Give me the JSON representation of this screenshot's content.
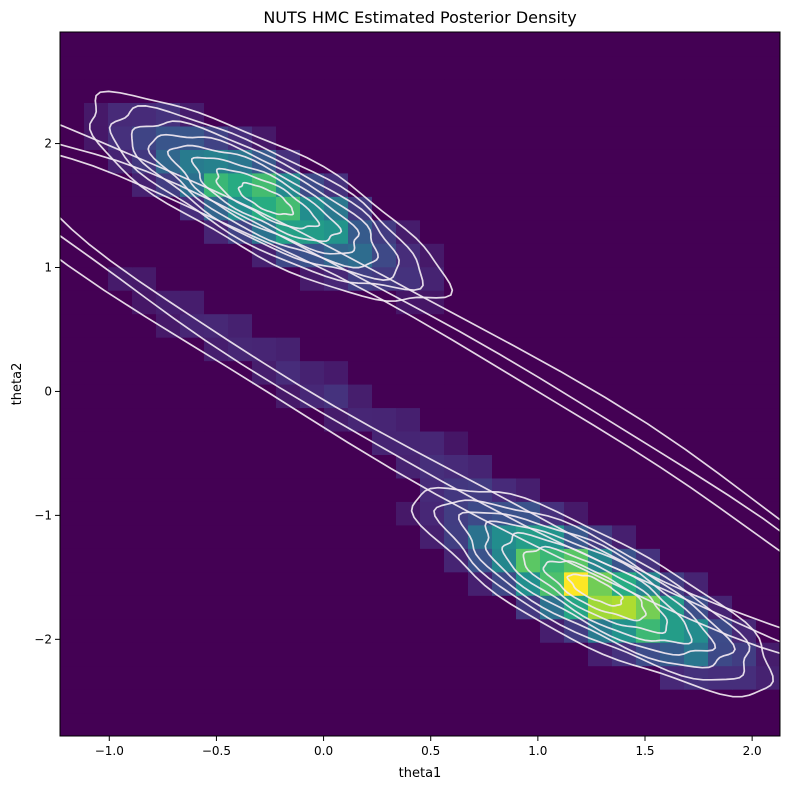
{
  "chart_data": {
    "type": "heatmap",
    "title": "NUTS HMC Estimated Posterior Density",
    "xlabel": "theta1",
    "ylabel": "theta2",
    "xlim": [
      -1.23,
      2.13
    ],
    "ylim": [
      -2.78,
      2.9
    ],
    "xticks": [
      -1.0,
      -0.5,
      0.0,
      0.5,
      1.0,
      1.5,
      2.0
    ],
    "xtick_labels": [
      "−1.0",
      "−0.5",
      "0.0",
      "0.5",
      "1.0",
      "1.5",
      "2.0"
    ],
    "yticks": [
      -2,
      -1,
      0,
      1,
      2
    ],
    "ytick_labels": [
      "−2",
      "−1",
      "0",
      "1",
      "2"
    ],
    "colormap": "viridis",
    "grid": false,
    "contour_color": "#f2e9f2",
    "modes": [
      {
        "theta1": -0.27,
        "theta2": 1.55
      },
      {
        "theta1": 1.27,
        "theta2": -1.6
      }
    ],
    "peak_cells": [
      {
        "theta1": 1.27,
        "theta2": -1.55,
        "density": 1.0
      },
      {
        "theta1": -0.29,
        "theta2": 1.67,
        "density": 0.8
      },
      {
        "theta1": 1.39,
        "theta2": -1.75,
        "density": 0.78
      },
      {
        "theta1": -0.17,
        "theta2": 1.45,
        "density": 0.7
      }
    ]
  }
}
